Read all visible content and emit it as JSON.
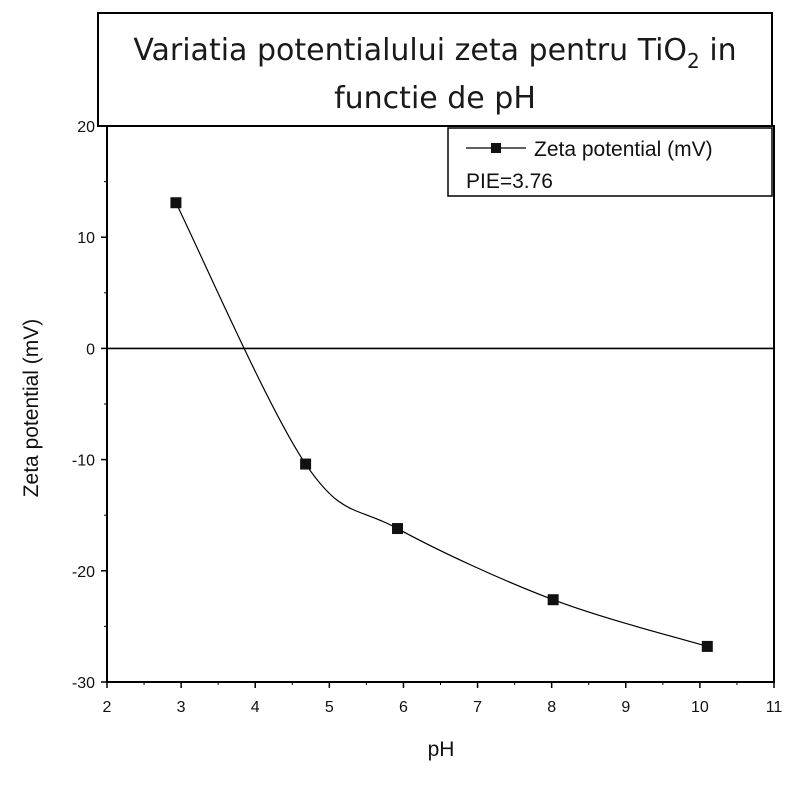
{
  "chart_data": {
    "type": "line",
    "title_line1": "Variatia potentialului zeta pentru TiO",
    "title_subscript": "2",
    "title_after_subscript": " in",
    "title_line2": "functie de pH",
    "xlabel": "pH",
    "ylabel": "Zeta potential (mV)",
    "xlim": [
      2,
      11
    ],
    "ylim": [
      -30,
      20
    ],
    "x_ticks": [
      2,
      3,
      4,
      5,
      6,
      7,
      8,
      9,
      10,
      11
    ],
    "y_ticks": [
      -30,
      -20,
      -10,
      0,
      10,
      20
    ],
    "reference_line_y": 0,
    "series": [
      {
        "name": "Zeta potential (mV)",
        "marker": "square",
        "x": [
          2.93,
          4.68,
          5.92,
          8.02,
          10.1
        ],
        "y": [
          13.1,
          -10.4,
          -16.2,
          -22.6,
          -26.8
        ]
      }
    ],
    "legend": {
      "entry": "Zeta potential (mV)",
      "annotation": "PIE=3.76",
      "placement": "top-right"
    }
  }
}
